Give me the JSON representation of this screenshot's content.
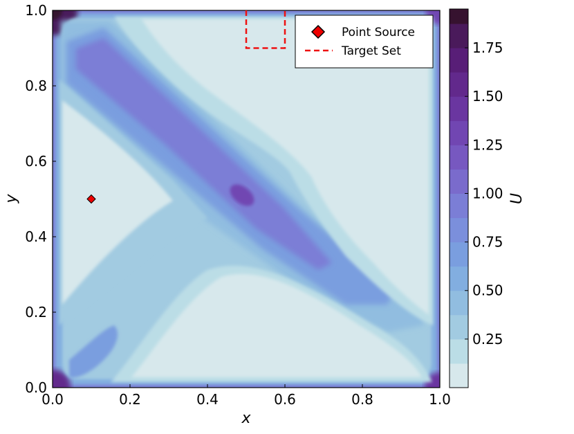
{
  "chart_data": {
    "type": "heatmap",
    "subtype": "filled-contour",
    "xlabel": "x",
    "ylabel": "y",
    "xlim": [
      0.0,
      1.0
    ],
    "ylim": [
      0.0,
      1.0
    ],
    "x_ticks": [
      "0.0",
      "0.2",
      "0.4",
      "0.6",
      "0.8",
      "1.0"
    ],
    "y_ticks": [
      "0.0",
      "0.2",
      "0.4",
      "0.6",
      "0.8",
      "1.0"
    ],
    "colorbar": {
      "label": "U",
      "range": [
        0.0,
        1.95
      ],
      "ticks": [
        "0.25",
        "0.50",
        "0.75",
        "1.00",
        "1.25",
        "1.50",
        "1.75"
      ],
      "levels": [
        0.0,
        0.125,
        0.25,
        0.375,
        0.5,
        0.625,
        0.75,
        0.875,
        1.0,
        1.125,
        1.25,
        1.375,
        1.5,
        1.625,
        1.75,
        1.875,
        1.95
      ],
      "colors": [
        "#d7e8ec",
        "#bbdde6",
        "#a2cbe1",
        "#91bde0",
        "#82aee0",
        "#7a9edf",
        "#7b8fdc",
        "#7b7ed6",
        "#7a6bcc",
        "#7758c0",
        "#7146b2",
        "#6a36a0",
        "#62298c",
        "#581e77",
        "#4a1a5b",
        "#36122f"
      ]
    },
    "grid": false,
    "legend_placement": "top-right",
    "series": [
      {
        "name": "Point Source",
        "kind": "marker",
        "color": "#ee0000",
        "points": [
          {
            "x": 0.1,
            "y": 0.5
          }
        ]
      },
      {
        "name": "Target Set",
        "kind": "dashed-rectangle",
        "color": "#ee1111",
        "x_range": [
          0.5,
          0.6
        ],
        "y_range": [
          0.9,
          1.0
        ]
      }
    ],
    "description": "Filled contour map of U over the unit square; high values along the boundary and corners, a dark ridge from upper-left to lower-right with a local maximum near (0.49, 0.5), and low-valued regions on the left, top-right and bottom."
  }
}
